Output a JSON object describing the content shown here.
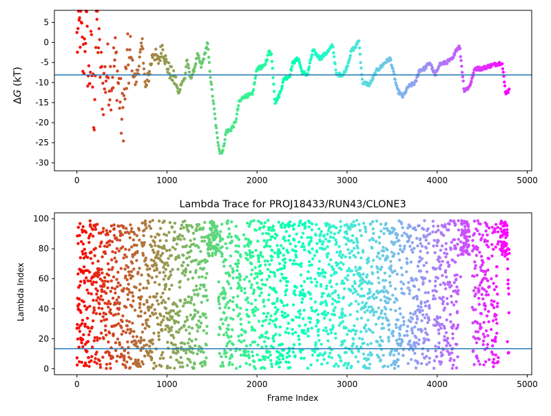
{
  "figure": {
    "background": "#ffffff"
  },
  "chart_data": [
    {
      "type": "scatter",
      "title": "",
      "xlabel": "",
      "ylabel_prefix": "Δ",
      "ylabel_var": "G",
      "ylabel_suffix": " (kT)",
      "xlim": [
        -250,
        5050
      ],
      "ylim": [
        -32,
        8
      ],
      "xticks": [
        0,
        1000,
        2000,
        3000,
        4000,
        5000
      ],
      "yticks": [
        5,
        0,
        -5,
        -10,
        -15,
        -20,
        -25,
        -30
      ],
      "hline": {
        "y": -8.1,
        "color": "#1f77b4"
      },
      "colormap": "rainbow_r",
      "frame_range": [
        0,
        4800
      ],
      "trace_waypoints": [
        [
          0,
          0
        ],
        [
          40,
          4.5
        ],
        [
          70,
          -6
        ],
        [
          100,
          6
        ],
        [
          130,
          -10
        ],
        [
          160,
          -3
        ],
        [
          190,
          -18
        ],
        [
          220,
          7
        ],
        [
          250,
          -4
        ],
        [
          290,
          -12
        ],
        [
          330,
          -7
        ],
        [
          380,
          -9
        ],
        [
          430,
          -4
        ],
        [
          470,
          -12
        ],
        [
          500,
          -20
        ],
        [
          520,
          -16
        ],
        [
          560,
          -6
        ],
        [
          600,
          -4
        ],
        [
          650,
          -10
        ],
        [
          700,
          -4
        ],
        [
          730,
          0
        ],
        [
          760,
          -12
        ],
        [
          800,
          -8
        ],
        [
          850,
          -2
        ],
        [
          900,
          -5
        ],
        [
          950,
          -1
        ],
        [
          1000,
          -6
        ],
        [
          1050,
          -8
        ],
        [
          1100,
          -10
        ],
        [
          1130,
          -13
        ],
        [
          1160,
          -10
        ],
        [
          1200,
          -9
        ],
        [
          1220,
          -4
        ],
        [
          1260,
          -9
        ],
        [
          1300,
          -7
        ],
        [
          1340,
          -3
        ],
        [
          1380,
          -6
        ],
        [
          1420,
          -3
        ],
        [
          1450,
          0
        ],
        [
          1480,
          -8
        ],
        [
          1520,
          -16
        ],
        [
          1560,
          -24
        ],
        [
          1590,
          -27.5
        ],
        [
          1620,
          -27
        ],
        [
          1660,
          -22
        ],
        [
          1700,
          -22
        ],
        [
          1760,
          -20
        ],
        [
          1800,
          -15
        ],
        [
          1850,
          -13.5
        ],
        [
          1950,
          -13
        ],
        [
          2000,
          -6.5
        ],
        [
          2080,
          -6
        ],
        [
          2140,
          -2
        ],
        [
          2160,
          -3
        ],
        [
          2200,
          -15
        ],
        [
          2250,
          -13
        ],
        [
          2300,
          -9
        ],
        [
          2360,
          -8.5
        ],
        [
          2400,
          -5
        ],
        [
          2460,
          -4
        ],
        [
          2500,
          -7.5
        ],
        [
          2560,
          -8
        ],
        [
          2620,
          -2
        ],
        [
          2700,
          -4
        ],
        [
          2800,
          -2
        ],
        [
          2840,
          -0.5
        ],
        [
          2880,
          -8
        ],
        [
          2960,
          -8
        ],
        [
          3000,
          -6
        ],
        [
          3050,
          -2
        ],
        [
          3100,
          -1
        ],
        [
          3130,
          0.8
        ],
        [
          3170,
          -10
        ],
        [
          3250,
          -10.5
        ],
        [
          3330,
          -7
        ],
        [
          3380,
          -6
        ],
        [
          3420,
          -5
        ],
        [
          3480,
          -4
        ],
        [
          3560,
          -12
        ],
        [
          3620,
          -13.5
        ],
        [
          3680,
          -11
        ],
        [
          3760,
          -10
        ],
        [
          3800,
          -7
        ],
        [
          3860,
          -6.5
        ],
        [
          3920,
          -5
        ],
        [
          3980,
          -8.5
        ],
        [
          4020,
          -5.5
        ],
        [
          4100,
          -5
        ],
        [
          4180,
          -4
        ],
        [
          4200,
          -2
        ],
        [
          4250,
          -1
        ],
        [
          4300,
          -12
        ],
        [
          4360,
          -11
        ],
        [
          4420,
          -6.5
        ],
        [
          4500,
          -6.5
        ],
        [
          4560,
          -6
        ],
        [
          4640,
          -5.5
        ],
        [
          4720,
          -5
        ],
        [
          4760,
          -12.5
        ],
        [
          4800,
          -12
        ]
      ]
    },
    {
      "type": "scatter",
      "title": "Lambda Trace for PROJ18433/RUN43/CLONE3",
      "xlabel": "Frame Index",
      "ylabel": "Lambda Index",
      "xlim": [
        -250,
        5050
      ],
      "ylim": [
        -4,
        104
      ],
      "xticks": [
        0,
        1000,
        2000,
        3000,
        4000,
        5000
      ],
      "yticks": [
        0,
        20,
        40,
        60,
        80,
        100
      ],
      "hline": {
        "y": 13.3,
        "color": "#1f77b4"
      },
      "colormap": "rainbow_r",
      "frame_range": [
        0,
        4800
      ],
      "lambda_range": [
        0,
        99
      ]
    }
  ]
}
